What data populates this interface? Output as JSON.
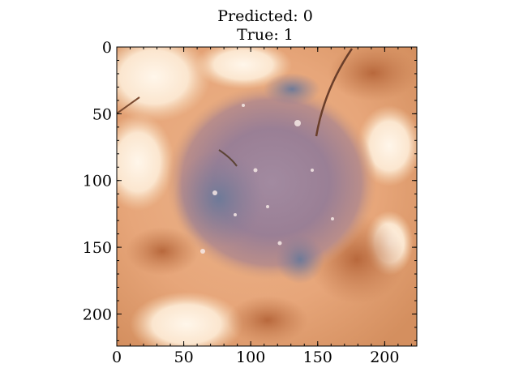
{
  "title_line1": "Predicted: 0",
  "title_line2": "True: 1",
  "chart_data": {
    "type": "heatmap",
    "title": "Predicted: 0\nTrue: 1",
    "xlabel": "",
    "ylabel": "",
    "xlim": [
      0,
      224
    ],
    "ylim": [
      224,
      0
    ],
    "x_ticks": [
      0,
      50,
      100,
      150,
      200
    ],
    "y_ticks": [
      0,
      50,
      100,
      150,
      200
    ],
    "x_minor_step": 10,
    "y_minor_step": 10,
    "grid": false,
    "image_description_keys": [
      "skin-lesion-dermoscopy"
    ]
  },
  "colors": {
    "skin_light": "#fbe6cf",
    "skin_mid": "#e9a877",
    "skin_dark": "#c27a4e",
    "lesion": "#9a7f95",
    "lesion_dark": "#6e6a86",
    "hair": "#6a3e2a"
  }
}
